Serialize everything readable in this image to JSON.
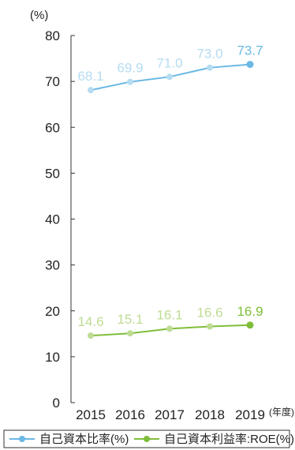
{
  "chart_data": {
    "type": "line",
    "y_unit": "(%)",
    "x_unit": "(年度)",
    "categories": [
      "2015",
      "2016",
      "2017",
      "2018",
      "2019"
    ],
    "ylim": [
      0,
      80
    ],
    "yticks": [
      0,
      10,
      20,
      30,
      40,
      50,
      60,
      70,
      80
    ],
    "grid": false,
    "legend_position": "bottom",
    "series": [
      {
        "name": "自己資本比率(%)",
        "values": [
          68.1,
          69.9,
          71.0,
          73.0,
          73.7
        ],
        "labels": [
          "68.1",
          "69.9",
          "71.0",
          "73.0",
          "73.7"
        ],
        "color": "#6ab8e4",
        "faded_color": "#b5dcf1"
      },
      {
        "name": "自己資本利益率:ROE(%)",
        "values": [
          14.6,
          15.1,
          16.1,
          16.6,
          16.9
        ],
        "labels": [
          "14.6",
          "15.1",
          "16.1",
          "16.6",
          "16.9"
        ],
        "color": "#7fbe3a",
        "faded_color": "#bfdc93"
      }
    ]
  }
}
